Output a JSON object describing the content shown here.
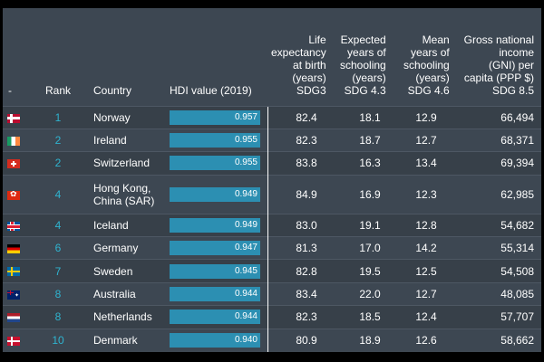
{
  "headers": {
    "flag": "-",
    "rank": "Rank",
    "country": "Country",
    "hdi": "HDI value (2019)",
    "life": [
      "Life",
      "expectancy",
      "at birth",
      "(years)",
      "SDG3"
    ],
    "expected": [
      "Expected",
      "years of",
      "schooling",
      "(years)",
      "SDG 4.3"
    ],
    "mean": [
      "Mean",
      "years of",
      "schooling",
      "(years)",
      "SDG 4.6"
    ],
    "gni": [
      "Gross national income",
      "(GNI) per capita (PPP $)",
      "SDG 8.5"
    ]
  },
  "rows": [
    {
      "flag": "norway-flag-icon",
      "rank": "1",
      "country": "Norway",
      "hdi": "0.957",
      "life": "82.4",
      "expected": "18.1",
      "mean": "12.9",
      "gni": "66,494"
    },
    {
      "flag": "ireland-flag-icon",
      "rank": "2",
      "country": "Ireland",
      "hdi": "0.955",
      "life": "82.3",
      "expected": "18.7",
      "mean": "12.7",
      "gni": "68,371"
    },
    {
      "flag": "switzerland-flag-icon",
      "rank": "2",
      "country": "Switzerland",
      "hdi": "0.955",
      "life": "83.8",
      "expected": "16.3",
      "mean": "13.4",
      "gni": "69,394"
    },
    {
      "flag": "hong-kong-flag-icon",
      "rank": "4",
      "country": "Hong Kong, China (SAR)",
      "hdi": "0.949",
      "life": "84.9",
      "expected": "16.9",
      "mean": "12.3",
      "gni": "62,985"
    },
    {
      "flag": "iceland-flag-icon",
      "rank": "4",
      "country": "Iceland",
      "hdi": "0.949",
      "life": "83.0",
      "expected": "19.1",
      "mean": "12.8",
      "gni": "54,682"
    },
    {
      "flag": "germany-flag-icon",
      "rank": "6",
      "country": "Germany",
      "hdi": "0.947",
      "life": "81.3",
      "expected": "17.0",
      "mean": "14.2",
      "gni": "55,314"
    },
    {
      "flag": "sweden-flag-icon",
      "rank": "7",
      "country": "Sweden",
      "hdi": "0.945",
      "life": "82.8",
      "expected": "19.5",
      "mean": "12.5",
      "gni": "54,508"
    },
    {
      "flag": "australia-flag-icon",
      "rank": "8",
      "country": "Australia",
      "hdi": "0.944",
      "life": "83.4",
      "expected": "22.0",
      "mean": "12.7",
      "gni": "48,085"
    },
    {
      "flag": "netherlands-flag-icon",
      "rank": "8",
      "country": "Netherlands",
      "hdi": "0.944",
      "life": "82.3",
      "expected": "18.5",
      "mean": "12.4",
      "gni": "57,707"
    },
    {
      "flag": "denmark-flag-icon",
      "rank": "10",
      "country": "Denmark",
      "hdi": "0.940",
      "life": "80.9",
      "expected": "18.9",
      "mean": "12.6",
      "gni": "58,662"
    }
  ],
  "colors": {
    "background": "#3d4752",
    "bar": "#2c8fb2",
    "rank": "#2fb3cf"
  }
}
